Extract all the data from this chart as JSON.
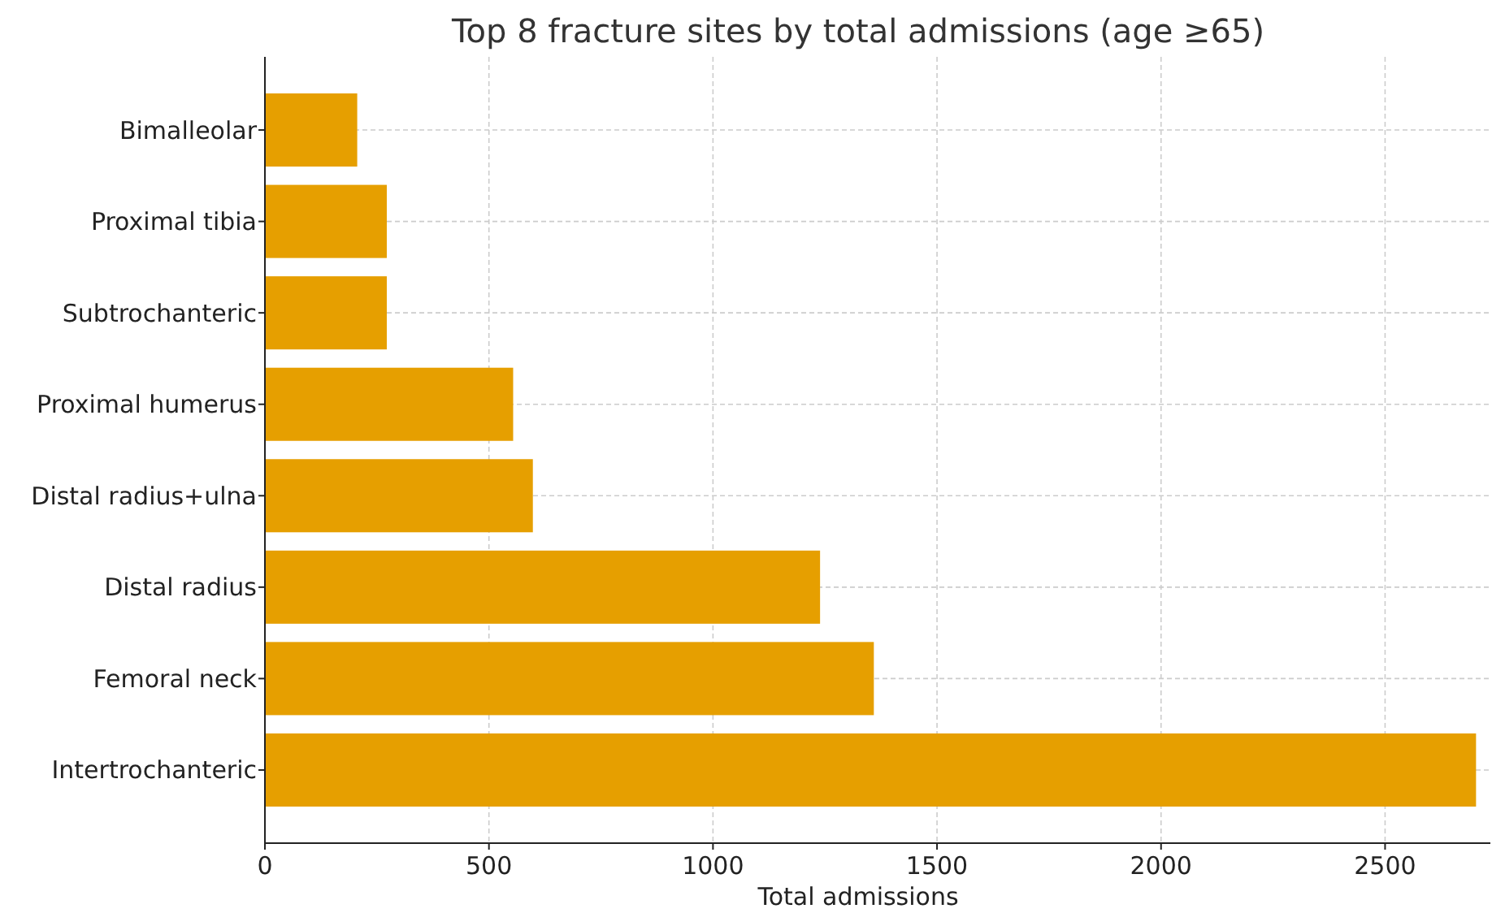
{
  "chart_data": {
    "type": "bar",
    "orientation": "horizontal",
    "title": "Top 8 fracture sites by total admissions (age ≥65)",
    "xlabel": "Total admissions",
    "categories": [
      "Bimalleolar",
      "Proximal tibia",
      "Subtrochanteric",
      "Proximal humerus",
      "Distal radius+ulna",
      "Distal radius",
      "Femoral neck",
      "Intertrochanteric"
    ],
    "values": [
      206,
      272,
      272,
      554,
      598,
      1239,
      1359,
      2703
    ],
    "color": "#e69f00",
    "xlim": [
      0,
      2735
    ],
    "xticks": [
      0,
      500,
      1000,
      1500,
      2000,
      2500
    ],
    "grid": true
  }
}
